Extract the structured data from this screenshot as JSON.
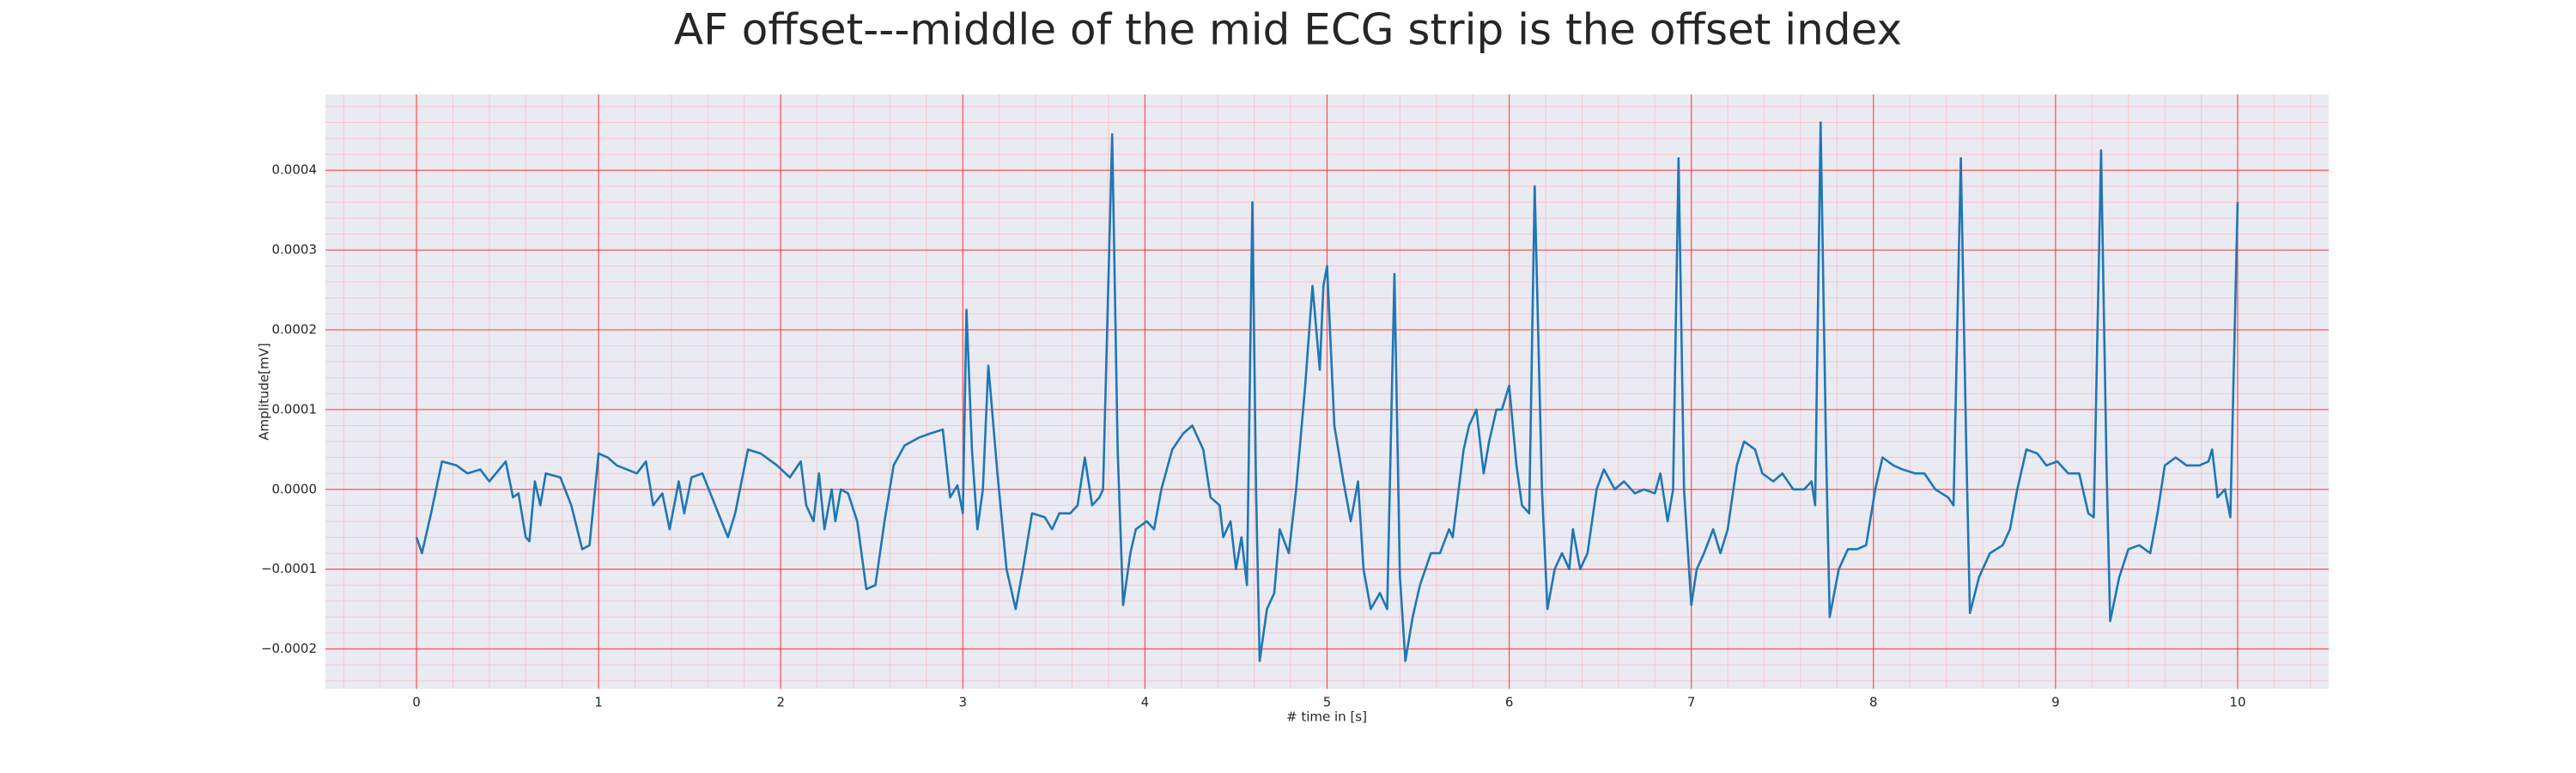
{
  "chart_data": {
    "type": "line",
    "title": "AF offset---middle of the mid ECG strip is the offset index",
    "xlabel": "# time in [s]",
    "ylabel": "Amplitude[mV]",
    "color": "#1f77b4",
    "xlim": [
      -0.5,
      10.5
    ],
    "ylim": [
      -0.00025,
      0.000495
    ],
    "xticks": [
      0,
      1,
      2,
      3,
      4,
      5,
      6,
      7,
      8,
      9,
      10
    ],
    "yticks": [
      {
        "value": -0.0002,
        "label": "−0.0002"
      },
      {
        "value": -0.0001,
        "label": "−0.0001"
      },
      {
        "value": 0,
        "label": "0.0000"
      },
      {
        "value": 0.0001,
        "label": "0.0001"
      },
      {
        "value": 0.0002,
        "label": "0.0002"
      },
      {
        "value": 0.0003,
        "label": "0.0003"
      },
      {
        "value": 0.0004,
        "label": "0.0004"
      }
    ],
    "grid": true,
    "minor_grid": {
      "x": 0.2,
      "y": 2e-05
    },
    "x": [
      0.0,
      0.03,
      0.08,
      0.14,
      0.22,
      0.28,
      0.35,
      0.4,
      0.49,
      0.53,
      0.56,
      0.6,
      0.62,
      0.65,
      0.68,
      0.71,
      0.79,
      0.85,
      0.91,
      0.95,
      1.0,
      1.05,
      1.1,
      1.21,
      1.26,
      1.3,
      1.35,
      1.39,
      1.44,
      1.47,
      1.51,
      1.57,
      1.64,
      1.71,
      1.75,
      1.82,
      1.89,
      1.98,
      2.05,
      2.11,
      2.14,
      2.18,
      2.21,
      2.24,
      2.28,
      2.3,
      2.33,
      2.37,
      2.42,
      2.47,
      2.52,
      2.57,
      2.62,
      2.68,
      2.76,
      2.82,
      2.89,
      2.93,
      2.97,
      3.0,
      3.02,
      3.05,
      3.08,
      3.11,
      3.14,
      3.19,
      3.24,
      3.29,
      3.33,
      3.38,
      3.45,
      3.49,
      3.53,
      3.59,
      3.63,
      3.67,
      3.71,
      3.75,
      3.77,
      3.82,
      3.85,
      3.88,
      3.92,
      3.95,
      4.01,
      4.05,
      4.09,
      4.15,
      4.21,
      4.26,
      4.32,
      4.36,
      4.41,
      4.43,
      4.47,
      4.5,
      4.53,
      4.56,
      4.59,
      4.61,
      4.63,
      4.67,
      4.71,
      4.74,
      4.79,
      4.83,
      4.88,
      4.92,
      4.96,
      4.98,
      5.0,
      5.04,
      5.09,
      5.13,
      5.17,
      5.2,
      5.24,
      5.29,
      5.33,
      5.37,
      5.4,
      5.43,
      5.47,
      5.51,
      5.57,
      5.62,
      5.67,
      5.69,
      5.75,
      5.78,
      5.82,
      5.86,
      5.89,
      5.93,
      5.96,
      6.0,
      6.04,
      6.07,
      6.11,
      6.14,
      6.18,
      6.21,
      6.25,
      6.29,
      6.33,
      6.35,
      6.39,
      6.43,
      6.48,
      6.52,
      6.58,
      6.63,
      6.69,
      6.74,
      6.8,
      6.83,
      6.87,
      6.9,
      6.93,
      6.96,
      7.0,
      7.03,
      7.07,
      7.12,
      7.16,
      7.2,
      7.25,
      7.29,
      7.35,
      7.39,
      7.45,
      7.5,
      7.56,
      7.62,
      7.66,
      7.68,
      7.71,
      7.74,
      7.76,
      7.81,
      7.86,
      7.91,
      7.96,
      8.01,
      8.05,
      8.11,
      8.16,
      8.23,
      8.28,
      8.34,
      8.41,
      8.44,
      8.48,
      8.51,
      8.53,
      8.58,
      8.64,
      8.71,
      8.75,
      8.79,
      8.84,
      8.9,
      8.95,
      9.01,
      9.07,
      9.13,
      9.18,
      9.21,
      9.25,
      9.28,
      9.3,
      9.35,
      9.4,
      9.46,
      9.52,
      9.56,
      9.6,
      9.66,
      9.72,
      9.79,
      9.84,
      9.86,
      9.89,
      9.93,
      9.96,
      10.0
    ],
    "values": [
      -6e-05,
      -8e-05,
      -3e-05,
      3.5e-05,
      3e-05,
      2e-05,
      2.5e-05,
      1e-05,
      3.5e-05,
      -1e-05,
      -5e-06,
      -6e-05,
      -6.5e-05,
      1e-05,
      -2e-05,
      2e-05,
      1.5e-05,
      -2e-05,
      -7.5e-05,
      -7e-05,
      4.5e-05,
      4e-05,
      3e-05,
      2e-05,
      3.5e-05,
      -2e-05,
      -5e-06,
      -5e-05,
      1e-05,
      -3e-05,
      1.5e-05,
      2e-05,
      -2e-05,
      -6e-05,
      -3e-05,
      5e-05,
      4.5e-05,
      3e-05,
      1.5e-05,
      3.5e-05,
      -2e-05,
      -4e-05,
      2e-05,
      -5e-05,
      0,
      -4e-05,
      0,
      -5e-06,
      -4e-05,
      -0.000125,
      -0.00012,
      -4e-05,
      3e-05,
      5.5e-05,
      6.5e-05,
      7e-05,
      7.5e-05,
      -1e-05,
      5e-06,
      -3e-05,
      0.000225,
      5e-05,
      -5e-05,
      0,
      0.000155,
      2e-05,
      -0.0001,
      -0.00015,
      -0.0001,
      -3e-05,
      -3.5e-05,
      -5e-05,
      -3e-05,
      -3e-05,
      -2e-05,
      4e-05,
      -2e-05,
      -1e-05,
      0,
      0.000445,
      5e-05,
      -0.000145,
      -8e-05,
      -5e-05,
      -4e-05,
      -5e-05,
      0,
      5e-05,
      7e-05,
      8e-05,
      5e-05,
      -1e-05,
      -2e-05,
      -6e-05,
      -4e-05,
      -0.0001,
      -6e-05,
      -0.00012,
      0.00036,
      0,
      -0.000215,
      -0.00015,
      -0.00013,
      -5e-05,
      -8e-05,
      0,
      0.00013,
      0.000255,
      0.00015,
      0.000255,
      0.00028,
      8e-05,
      1e-05,
      -4e-05,
      1e-05,
      -0.0001,
      -0.00015,
      -0.00013,
      -0.00015,
      0.00027,
      -0.00011,
      -0.000215,
      -0.00016,
      -0.00012,
      -8e-05,
      -8e-05,
      -5e-05,
      -6e-05,
      5e-05,
      8e-05,
      0.0001,
      2e-05,
      6e-05,
      0.0001,
      0.0001,
      0.00013,
      3e-05,
      -2e-05,
      -3e-05,
      0.00038,
      0,
      -0.00015,
      -0.0001,
      -8e-05,
      -0.0001,
      -5e-05,
      -0.0001,
      -8e-05,
      0,
      2.5e-05,
      0,
      1e-05,
      -5e-06,
      0,
      -5e-06,
      2e-05,
      -4e-05,
      0,
      0.000415,
      0,
      -0.000145,
      -0.0001,
      -8e-05,
      -5e-05,
      -8e-05,
      -5e-05,
      3e-05,
      6e-05,
      5e-05,
      2e-05,
      1e-05,
      2e-05,
      0,
      0,
      1e-05,
      -2e-05,
      0.00046,
      5e-05,
      -0.00016,
      -0.0001,
      -7.5e-05,
      -7.5e-05,
      -7e-05,
      0,
      4e-05,
      3e-05,
      2.5e-05,
      2e-05,
      2e-05,
      0,
      -1e-05,
      -2e-05,
      0.000415,
      5e-05,
      -0.000155,
      -0.00011,
      -8e-05,
      -7e-05,
      -5e-05,
      0,
      5e-05,
      4.5e-05,
      3e-05,
      3.5e-05,
      2e-05,
      2e-05,
      -3e-05,
      -3.5e-05,
      0.000425,
      3e-05,
      -0.000165,
      -0.00011,
      -7.5e-05,
      -7e-05,
      -8e-05,
      -3e-05,
      3e-05,
      4e-05,
      3e-05,
      3e-05,
      3.5e-05,
      5e-05,
      -1e-05,
      0,
      -3.5e-05,
      0.00036
    ]
  }
}
